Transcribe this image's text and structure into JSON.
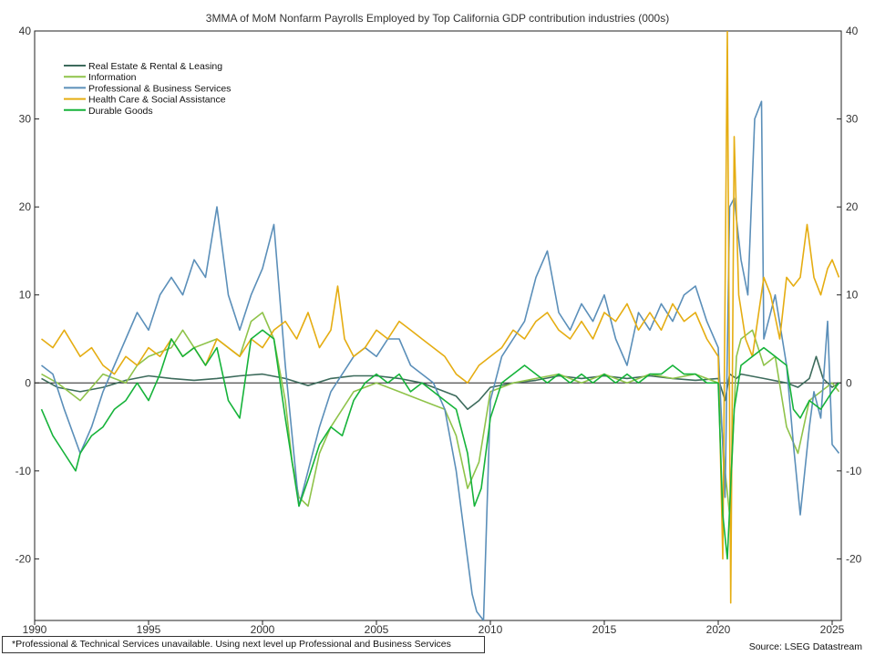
{
  "chart_data": {
    "type": "line",
    "title": "3MMA of MoM Nonfarm Payrolls Employed by Top California GDP contribution industries (000s)",
    "footnote": "*Professional & Technical Services unavailable. Using next level up Professional and Business Services",
    "source": "Source: LSEG Datastream",
    "ylim": [
      -27,
      40
    ],
    "xlim": [
      1990,
      2025.4
    ],
    "y_ticks": [
      40,
      30,
      20,
      10,
      0,
      -10,
      -20
    ],
    "x_ticks": [
      1990,
      1995,
      2000,
      2005,
      2010,
      2015,
      2020,
      2025
    ],
    "legend_position": "top-left",
    "grid": false,
    "series": [
      {
        "name": "Real Estate & Rental & Leasing",
        "color": "#3d6b5c",
        "x": [
          1990.3,
          1991,
          1992,
          1993,
          1994,
          1995,
          1996,
          1997,
          1998,
          1999,
          2000,
          2001,
          2002,
          2003,
          2004,
          2005,
          2006,
          2007,
          2008,
          2008.5,
          2009,
          2009.5,
          2010,
          2011,
          2012,
          2013,
          2014,
          2015,
          2016,
          2017,
          2018,
          2019,
          2020,
          2020.3,
          2020.5,
          2020.8,
          2021,
          2022,
          2023,
          2023.5,
          2024,
          2024.3,
          2024.6,
          2025,
          2025.3
        ],
        "y": [
          0.5,
          -0.5,
          -1,
          -0.5,
          0.3,
          0.8,
          0.5,
          0.3,
          0.5,
          0.8,
          1,
          0.5,
          -0.3,
          0.5,
          0.8,
          0.8,
          0.5,
          0,
          -1,
          -1.5,
          -3,
          -2,
          -0.5,
          0,
          0.3,
          0.8,
          0.5,
          0.8,
          0.5,
          0.8,
          0.5,
          0.3,
          0.5,
          -2,
          1,
          0.5,
          1,
          0.5,
          0,
          -0.5,
          0.5,
          3,
          0.5,
          -0.5,
          0
        ]
      },
      {
        "name": "Information",
        "color": "#8fc34a",
        "x": [
          1990.3,
          1991,
          1992,
          1993,
          1994,
          1994.5,
          1995,
          1996,
          1996.5,
          1997,
          1998,
          1999,
          1999.5,
          2000,
          2000.5,
          2001,
          2001.3,
          2001.6,
          2002,
          2002.5,
          2003,
          2004,
          2005,
          2006,
          2007,
          2008,
          2008.5,
          2009,
          2009.5,
          2010,
          2011,
          2012,
          2013,
          2014,
          2015,
          2016,
          2017,
          2018,
          2019,
          2020,
          2020.3,
          2020.5,
          2020.8,
          2021,
          2021.5,
          2022,
          2022.5,
          2023,
          2023.5,
          2024,
          2024.5,
          2025,
          2025.3
        ],
        "y": [
          1,
          0,
          -2,
          1,
          0,
          2,
          3,
          4,
          6,
          4,
          5,
          3,
          7,
          8,
          5,
          -2,
          -9,
          -13,
          -14,
          -8,
          -5,
          -1,
          0,
          -1,
          -2,
          -3,
          -6,
          -12,
          -9,
          -1,
          0,
          0.5,
          1,
          0,
          1,
          0,
          1,
          0.5,
          1,
          0,
          -10,
          -15,
          3,
          5,
          6,
          2,
          3,
          -5,
          -8,
          -2,
          -1,
          0,
          -1
        ]
      },
      {
        "name": "Professional & Business Services",
        "color": "#5b8fb9",
        "x": [
          1990.3,
          1990.8,
          1991.3,
          1992,
          1992.5,
          1993,
          1993.5,
          1994,
          1994.5,
          1995,
          1995.5,
          1996,
          1996.5,
          1997,
          1997.5,
          1998,
          1998.5,
          1999,
          1999.5,
          2000,
          2000.5,
          2001,
          2001.3,
          2001.6,
          2002,
          2002.5,
          2003,
          2003.5,
          2004,
          2004.5,
          2005,
          2005.5,
          2006,
          2006.5,
          2007,
          2007.5,
          2008,
          2008.5,
          2009,
          2009.2,
          2009.4,
          2009.7,
          2010,
          2010.5,
          2011,
          2011.5,
          2012,
          2012.5,
          2013,
          2013.5,
          2014,
          2014.5,
          2015,
          2015.5,
          2016,
          2016.5,
          2017,
          2017.5,
          2018,
          2018.5,
          2019,
          2019.5,
          2020,
          2020.3,
          2020.5,
          2020.7,
          2021,
          2021.3,
          2021.6,
          2021.9,
          2022,
          2022.5,
          2023,
          2023.3,
          2023.6,
          2024,
          2024.2,
          2024.5,
          2024.8,
          2025,
          2025.3
        ],
        "y": [
          2,
          1,
          -3,
          -8,
          -5,
          -1,
          2,
          5,
          8,
          6,
          10,
          12,
          10,
          14,
          12,
          20,
          10,
          6,
          10,
          13,
          18,
          2,
          -6,
          -14,
          -10,
          -5,
          -1,
          1,
          3,
          4,
          3,
          5,
          5,
          2,
          1,
          0,
          -3,
          -10,
          -20,
          -24,
          -26,
          -27,
          -2,
          3,
          5,
          7,
          12,
          15,
          8,
          6,
          9,
          7,
          10,
          5,
          2,
          8,
          6,
          9,
          7,
          10,
          11,
          7,
          4,
          -13,
          20,
          21,
          14,
          10,
          30,
          32,
          5,
          10,
          2,
          -7,
          -15,
          -5,
          -1,
          -4,
          7,
          -7,
          -8
        ]
      },
      {
        "name": "Health Care & Social Assistance",
        "color": "#e5ad12",
        "x": [
          1990.3,
          1990.8,
          1991.3,
          1992,
          1992.5,
          1993,
          1993.5,
          1994,
          1994.5,
          1995,
          1995.5,
          1996,
          1996.5,
          1997,
          1997.5,
          1998,
          1998.5,
          1999,
          1999.5,
          2000,
          2000.5,
          2001,
          2001.5,
          2002,
          2002.5,
          2003,
          2003.3,
          2003.6,
          2004,
          2004.5,
          2005,
          2005.5,
          2006,
          2006.5,
          2007,
          2007.5,
          2008,
          2008.5,
          2009,
          2009.5,
          2010,
          2010.5,
          2011,
          2011.5,
          2012,
          2012.5,
          2013,
          2013.5,
          2014,
          2014.5,
          2015,
          2015.5,
          2016,
          2016.5,
          2017,
          2017.5,
          2018,
          2018.5,
          2019,
          2019.5,
          2020,
          2020.2,
          2020.4,
          2020.55,
          2020.7,
          2020.9,
          2021.2,
          2021.5,
          2022,
          2022.3,
          2022.7,
          2023,
          2023.3,
          2023.6,
          2023.9,
          2024.2,
          2024.5,
          2024.8,
          2025,
          2025.3
        ],
        "y": [
          5,
          4,
          6,
          3,
          4,
          2,
          1,
          3,
          2,
          4,
          3,
          5,
          3,
          4,
          2,
          5,
          4,
          3,
          5,
          4,
          6,
          7,
          5,
          8,
          4,
          6,
          11,
          5,
          3,
          4,
          6,
          5,
          7,
          6,
          5,
          4,
          3,
          1,
          0,
          2,
          3,
          4,
          6,
          5,
          7,
          8,
          6,
          5,
          7,
          5,
          8,
          7,
          9,
          6,
          8,
          6,
          9,
          7,
          8,
          5,
          3,
          -20,
          40,
          -25,
          28,
          10,
          5,
          3,
          12,
          10,
          5,
          12,
          11,
          12,
          18,
          12,
          10,
          13,
          14,
          12
        ]
      },
      {
        "name": "Durable Goods",
        "color": "#16b33a",
        "x": [
          1990.3,
          1990.8,
          1991.3,
          1991.8,
          1992,
          1992.5,
          1993,
          1993.5,
          1994,
          1994.5,
          1995,
          1995.5,
          1996,
          1996.5,
          1997,
          1997.5,
          1998,
          1998.5,
          1999,
          1999.5,
          2000,
          2000.5,
          2001,
          2001.3,
          2001.6,
          2002,
          2002.5,
          2003,
          2003.5,
          2004,
          2004.5,
          2005,
          2005.5,
          2006,
          2006.5,
          2007,
          2007.5,
          2008,
          2008.5,
          2009,
          2009.3,
          2009.6,
          2010,
          2010.5,
          2011,
          2011.5,
          2012,
          2012.5,
          2013,
          2013.5,
          2014,
          2014.5,
          2015,
          2015.5,
          2016,
          2016.5,
          2017,
          2017.5,
          2018,
          2018.5,
          2019,
          2019.5,
          2020,
          2020.2,
          2020.4,
          2020.7,
          2021,
          2021.5,
          2022,
          2022.5,
          2023,
          2023.3,
          2023.6,
          2024,
          2024.5,
          2025,
          2025.3
        ],
        "y": [
          -3,
          -6,
          -8,
          -10,
          -8,
          -6,
          -5,
          -3,
          -2,
          0,
          -2,
          1,
          5,
          3,
          4,
          2,
          4,
          -2,
          -4,
          5,
          6,
          5,
          -4,
          -9,
          -14,
          -11,
          -7,
          -5,
          -6,
          -2,
          0,
          1,
          0,
          1,
          -1,
          0,
          -1,
          -2,
          -3,
          -8,
          -14,
          -12,
          -4,
          0,
          1,
          2,
          1,
          0,
          1,
          0,
          1,
          0,
          1,
          0,
          1,
          0,
          1,
          1,
          2,
          1,
          1,
          0,
          0,
          -15,
          -20,
          -3,
          2,
          3,
          4,
          3,
          2,
          -3,
          -4,
          -2,
          -3,
          -1,
          0
        ]
      }
    ]
  }
}
